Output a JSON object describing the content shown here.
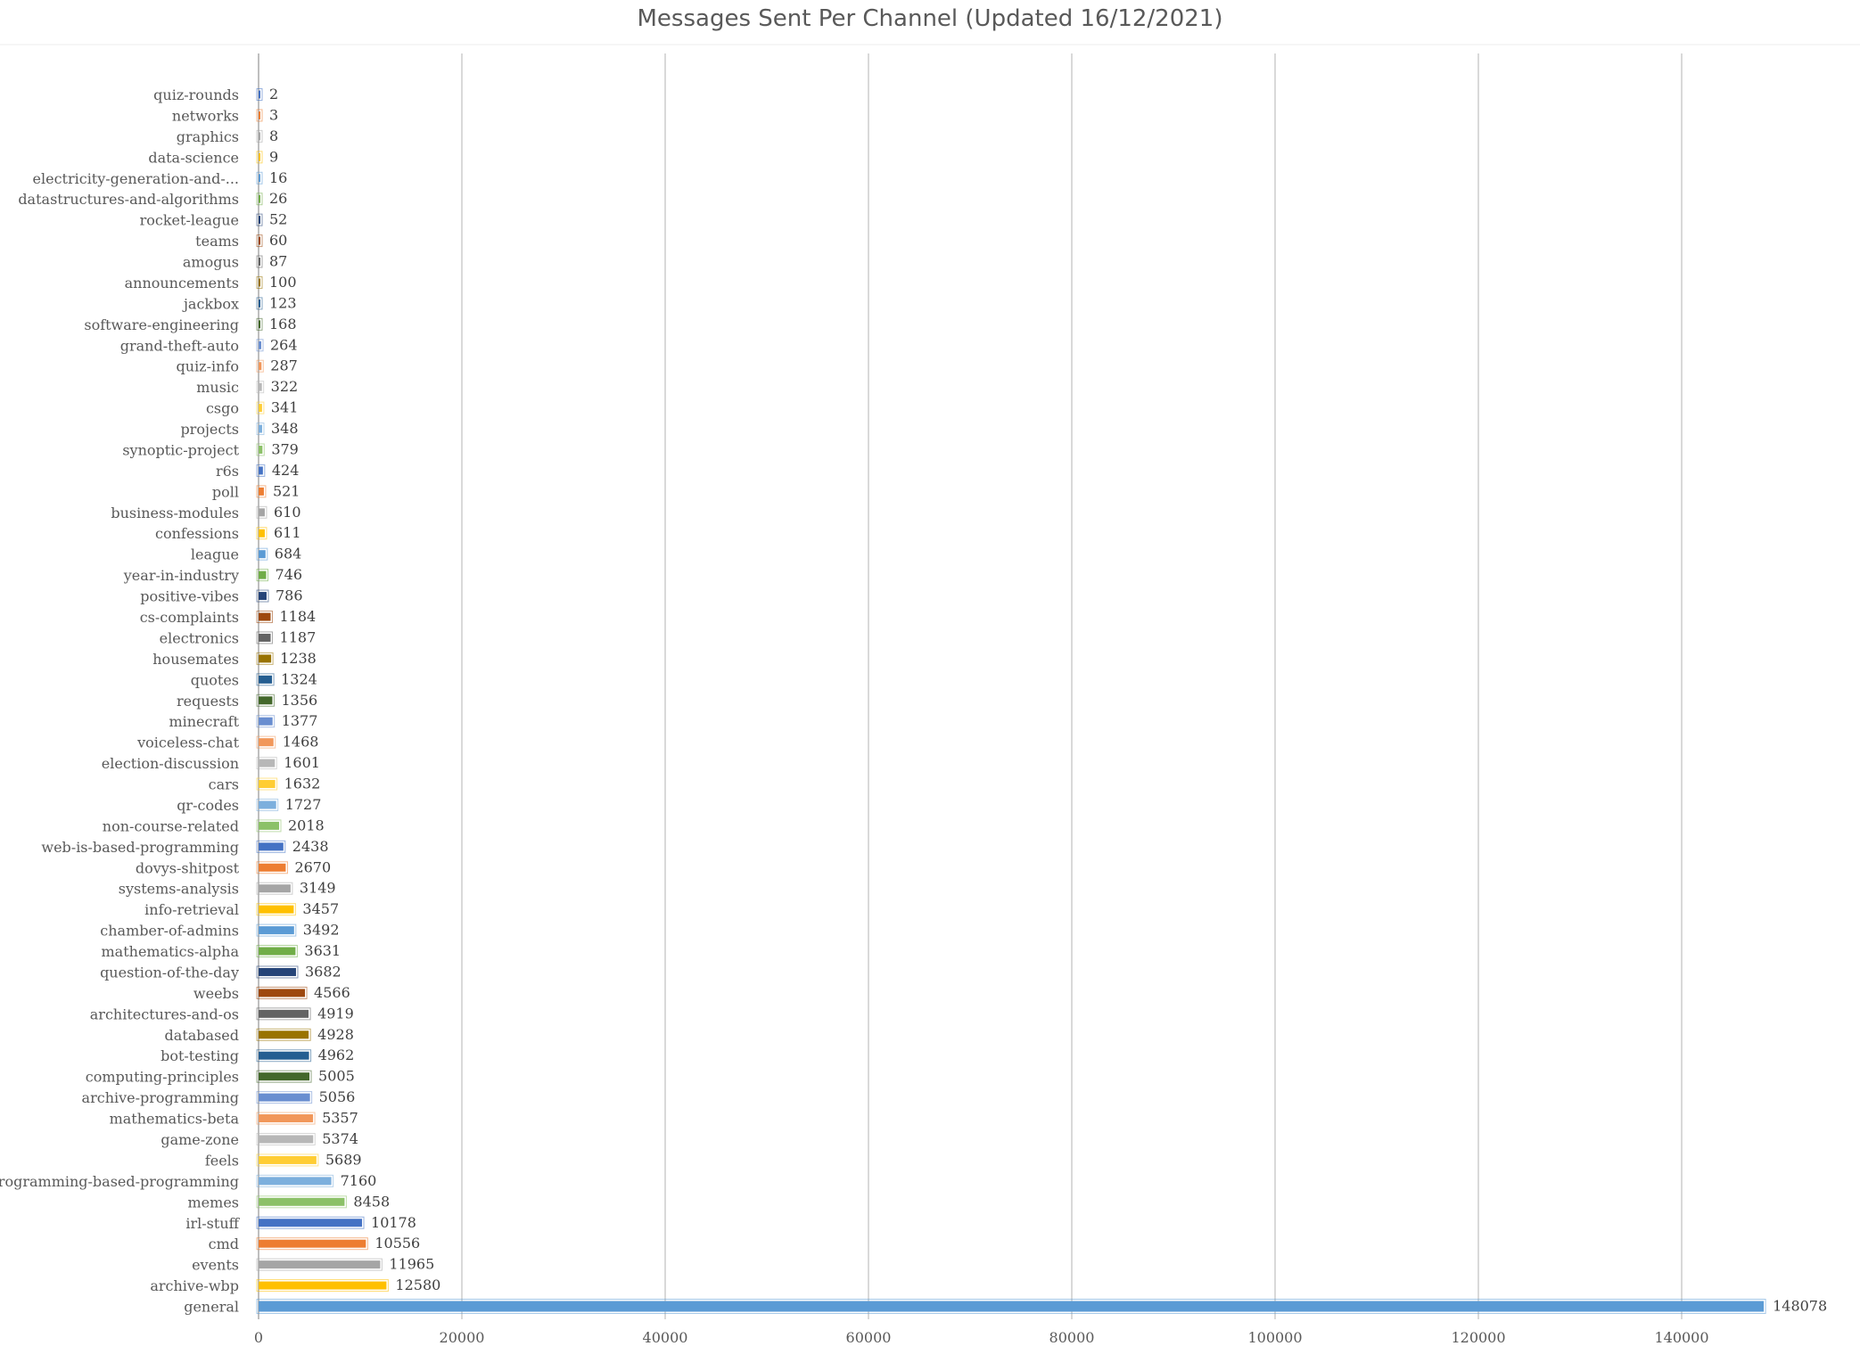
{
  "chart_data": {
    "type": "bar",
    "orientation": "horizontal",
    "title": "Messages Sent Per Channel (Updated 16/12/2021)",
    "xlabel": "",
    "ylabel": "",
    "xlim": [
      0,
      150000
    ],
    "x_ticks": [
      0,
      20000,
      40000,
      60000,
      80000,
      100000,
      120000,
      140000
    ],
    "grid": "vertical",
    "legend": "none",
    "data_labels": true,
    "categories": [
      "quiz-rounds",
      "networks",
      "graphics",
      "data-science",
      "electricity-generation-and-...",
      "datastructures-and-algorithms",
      "rocket-league",
      "teams",
      "amogus",
      "announcements",
      "jackbox",
      "software-engineering",
      "grand-theft-auto",
      "quiz-info",
      "music",
      "csgo",
      "projects",
      "synoptic-project",
      "r6s",
      "poll",
      "business-modules",
      "confessions",
      "league",
      "year-in-industry",
      "positive-vibes",
      "cs-complaints",
      "electronics",
      "housemates",
      "quotes",
      "requests",
      "minecraft",
      "voiceless-chat",
      "election-discussion",
      "cars",
      "qr-codes",
      "non-course-related",
      "web-is-based-programming",
      "dovys-shitpost",
      "systems-analysis",
      "info-retrieval",
      "chamber-of-admins",
      "mathematics-alpha",
      "question-of-the-day",
      "weebs",
      "architectures-and-os",
      "databased",
      "bot-testing",
      "computing-principles",
      "archive-programming",
      "mathematics-beta",
      "game-zone",
      "feels",
      "programming-based-programming",
      "memes",
      "irl-stuff",
      "cmd",
      "events",
      "archive-wbp",
      "general"
    ],
    "values": [
      2,
      3,
      8,
      9,
      16,
      26,
      52,
      60,
      87,
      100,
      123,
      168,
      264,
      287,
      322,
      341,
      348,
      379,
      424,
      521,
      610,
      611,
      684,
      746,
      786,
      1184,
      1187,
      1238,
      1324,
      1356,
      1377,
      1468,
      1601,
      1632,
      1727,
      2018,
      2438,
      2670,
      3149,
      3457,
      3492,
      3631,
      3682,
      4566,
      4919,
      4928,
      4962,
      5005,
      5056,
      5357,
      5374,
      5689,
      7160,
      8458,
      10178,
      10556,
      11965,
      12580,
      148078
    ],
    "colors": [
      "#4472C4",
      "#ED7D31",
      "#A5A5A5",
      "#FFC000",
      "#5B9BD5",
      "#70AD47",
      "#264478",
      "#9E480E",
      "#636363",
      "#997300",
      "#255E91",
      "#43682B",
      "#698ED0",
      "#F1975A",
      "#B7B7B7",
      "#FFCD33",
      "#7CAFDD",
      "#8CC168"
    ]
  }
}
